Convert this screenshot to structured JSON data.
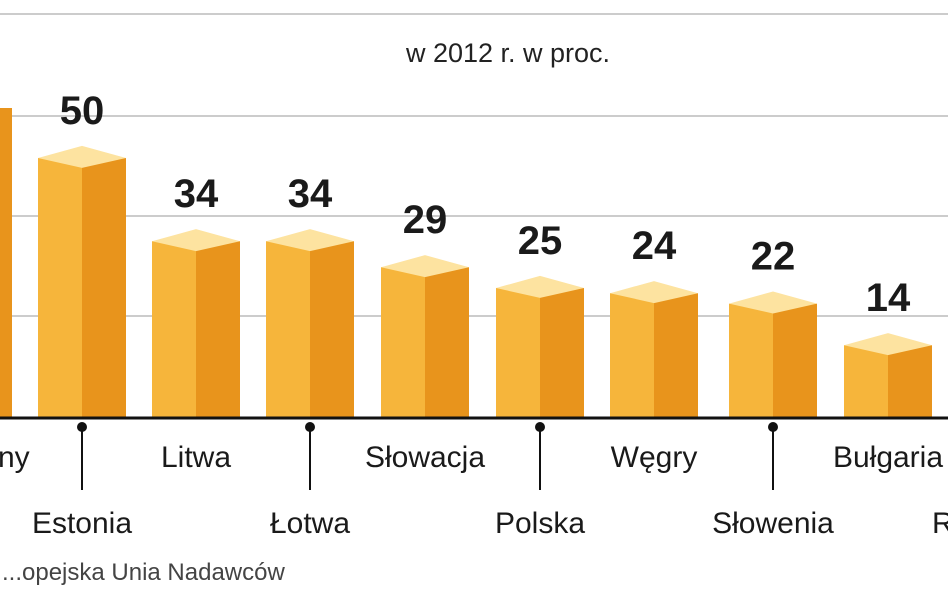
{
  "chart_data": {
    "type": "bar",
    "subtitle": "w 2012 r. w proc.",
    "categories": [
      "Słowacja",
      "Polska",
      "Węgry",
      "Słowenia",
      "Bułgaria"
    ],
    "partial_categories": [
      "...ny",
      "Estonia",
      "Litwa",
      "Łotwa"
    ],
    "values": [
      29,
      25,
      24,
      22,
      14
    ],
    "partial_values": [
      null,
      50,
      34,
      34
    ],
    "cropped_category_fragment_right": "R",
    "source": "...opejska Unia Nadawców",
    "colors": {
      "front": "#f6b53b",
      "side": "#e8941c",
      "top": "#fde3a0",
      "grid": "#cccccc"
    },
    "grid": true,
    "ylim": [
      0,
      60
    ]
  }
}
